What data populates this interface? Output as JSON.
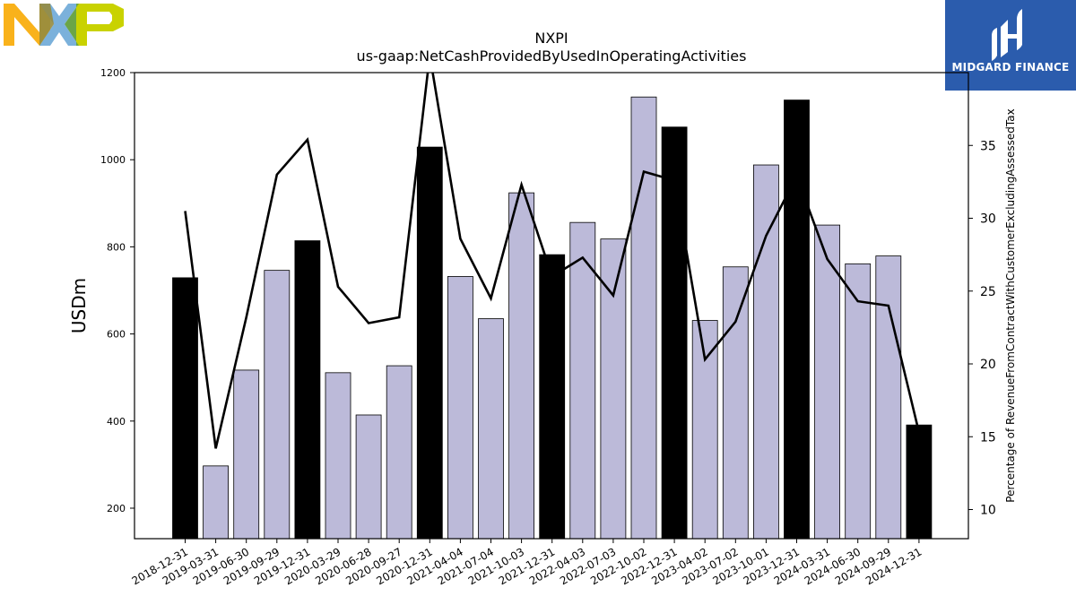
{
  "brand": {
    "company_logo_icon": "nxp-logo",
    "partner_logo_icon": "midgard-finance-logo",
    "partner_name": "MIDGARD FINANCE",
    "partner_color": "#2b5cad"
  },
  "chart_data": {
    "type": "bar",
    "title": "NXPI",
    "subtitle": "us-gaap:NetCashProvidedByUsedInOperatingActivities",
    "ylabel": "USDm",
    "y2label": "Percentage of RevenueFromContractWithCustomerExcludingAssessedTax",
    "ylim": [
      130,
      1200
    ],
    "y2lim": [
      8,
      40
    ],
    "yticks": [
      200,
      400,
      600,
      800,
      1000,
      1200
    ],
    "y2ticks": [
      10,
      15,
      20,
      25,
      30,
      35
    ],
    "grid": false,
    "legend": "none",
    "colors": {
      "annual": "#000000",
      "quarterly": "#bcbad9",
      "line": "#000000"
    },
    "categories": [
      "2018-12-31",
      "2019-03-31",
      "2019-06-30",
      "2019-09-29",
      "2019-12-31",
      "2020-03-29",
      "2020-06-28",
      "2020-09-27",
      "2020-12-31",
      "2021-04-04",
      "2021-07-04",
      "2021-10-03",
      "2021-12-31",
      "2022-04-03",
      "2022-07-03",
      "2022-10-02",
      "2022-12-31",
      "2023-04-02",
      "2023-07-02",
      "2023-10-01",
      "2023-12-31",
      "2024-03-31",
      "2024-06-30",
      "2024-09-29",
      "2024-12-31"
    ],
    "annual": [
      true,
      false,
      false,
      false,
      true,
      false,
      false,
      false,
      true,
      false,
      false,
      false,
      true,
      false,
      false,
      false,
      true,
      false,
      false,
      false,
      true,
      false,
      false,
      false,
      true
    ],
    "series": [
      {
        "values": [
          729,
          297,
          517,
          746,
          814,
          511,
          414,
          527,
          1029,
          732,
          635,
          924,
          782,
          856,
          818,
          1144,
          1075,
          631,
          754,
          988,
          1137,
          850,
          761,
          779,
          391
        ]
      },
      {
        "axis": "right",
        "type": "line",
        "values": [
          30.5,
          14.2,
          23.2,
          33.0,
          35.4,
          25.3,
          22.8,
          23.2,
          41.2,
          28.6,
          24.5,
          32.3,
          26.0,
          27.3,
          24.7,
          33.2,
          32.6,
          20.3,
          22.9,
          28.8,
          32.9,
          27.2,
          24.3,
          24.0,
          15.3
        ]
      }
    ]
  }
}
